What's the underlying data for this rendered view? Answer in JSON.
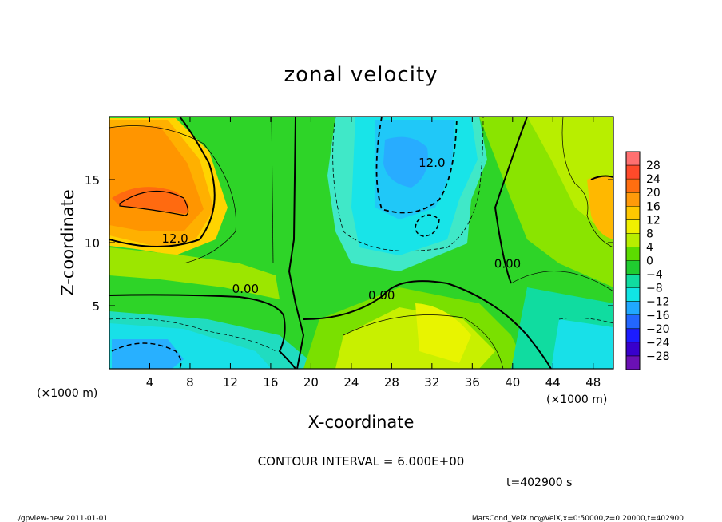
{
  "chart_data": {
    "type": "heatmap",
    "title": "zonal velocity",
    "xlabel": "X-coordinate",
    "ylabel": "Z-coordinate",
    "x_unit_left": "(×1000 m)",
    "x_unit_right": "(×1000 m)",
    "xlim": [
      0,
      50
    ],
    "ylim": [
      0,
      20
    ],
    "x_ticks": [
      4,
      8,
      12,
      16,
      20,
      24,
      28,
      32,
      36,
      40,
      44,
      48
    ],
    "y_ticks": [
      5,
      10,
      15
    ],
    "colorbar": {
      "labels": [
        28,
        24,
        20,
        16,
        12,
        8,
        4,
        0,
        -4,
        -8,
        -12,
        -16,
        -20,
        -24,
        -28
      ],
      "label_text": [
        "28",
        "24",
        "20",
        "16",
        "12",
        "8",
        "4",
        "0",
        "−4",
        "−8",
        "−12",
        "−16",
        "−20",
        "−24",
        "−28"
      ],
      "colors": [
        "#ff7070",
        "#ff4a2a",
        "#ff6e10",
        "#ff9a0a",
        "#ffc800",
        "#f0f000",
        "#b8ee00",
        "#5cdc00",
        "#20cc30",
        "#10dca0",
        "#10e4e4",
        "#20a8ff",
        "#2266ff",
        "#1c1cff",
        "#3800cc",
        "#6a10b4"
      ]
    },
    "contour_interval_text": "CONTOUR INTERVAL = 6.000E+00",
    "contour_labels": [
      {
        "text": "12.0",
        "x": 6.5,
        "z": 10.0
      },
      {
        "text": "0.00",
        "x": 13.5,
        "z": 6.0
      },
      {
        "text": "0.00",
        "x": 27.0,
        "z": 5.5
      },
      {
        "text": "12.0",
        "x": 32.0,
        "z": 16.0
      },
      {
        "text": "0.00",
        "x": 39.5,
        "z": 8.0
      }
    ],
    "time_text": "t=402900 s"
  },
  "footer": {
    "left": "./gpview-new   2011-01-01",
    "right": "MarsCond_VelX.nc@VelX,x=0:50000,z=0:20000,t=402900"
  }
}
